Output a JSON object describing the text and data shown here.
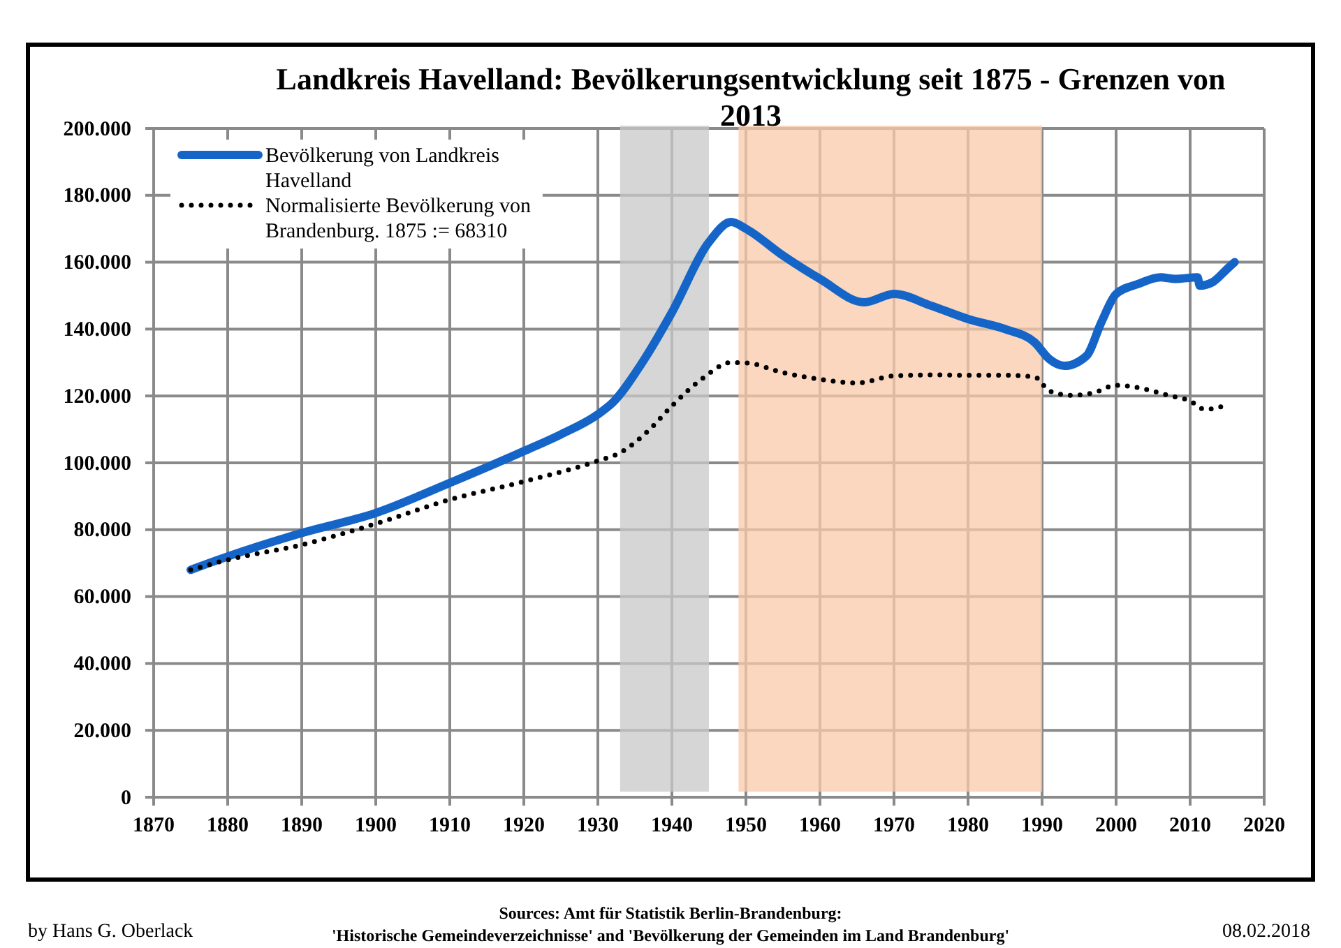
{
  "chart_data": {
    "type": "line",
    "title": "Landkreis Havelland: Bevölkerungsentwicklung seit 1875 - Grenzen von 2013",
    "xlim": [
      1870,
      2020
    ],
    "xticks": [
      1870,
      1880,
      1890,
      1900,
      1910,
      1920,
      1930,
      1940,
      1950,
      1960,
      1970,
      1980,
      1990,
      2000,
      2010,
      2020
    ],
    "ylim": [
      0,
      200000
    ],
    "yticks": [
      {
        "value": 0,
        "label": "0"
      },
      {
        "value": 20000,
        "label": "20.000"
      },
      {
        "value": 40000,
        "label": "40.000"
      },
      {
        "value": 60000,
        "label": "60.000"
      },
      {
        "value": 80000,
        "label": "80.000"
      },
      {
        "value": 100000,
        "label": "100.000"
      },
      {
        "value": 120000,
        "label": "120.000"
      },
      {
        "value": 140000,
        "label": "140.000"
      },
      {
        "value": 160000,
        "label": "160.000"
      },
      {
        "value": 180000,
        "label": "180.000"
      },
      {
        "value": 200000,
        "label": "200.000"
      }
    ],
    "grid": true,
    "legend": "top left",
    "bands": [
      {
        "axis": "x",
        "from": 1933,
        "to": 1945,
        "color": "#c8c8c8"
      },
      {
        "axis": "x",
        "from": 1949,
        "to": 1990,
        "color": "#f9c9a9"
      }
    ],
    "series": [
      {
        "name": "Bevölkerung von Landkreis Havelland",
        "color": "#1565c8",
        "line_style": "solid",
        "x": [
          1875,
          1880,
          1890,
          1900,
          1910,
          1920,
          1925,
          1930,
          1932,
          1936,
          1940,
          1945,
          1948,
          1950,
          1955,
          1960,
          1966,
          1970,
          1975,
          1980,
          1985,
          1989,
          1991,
          1993,
          1996,
          1998,
          2000,
          2003,
          2006,
          2008,
          2011,
          2011.3,
          2013,
          2015,
          2016
        ],
        "values": [
          68000,
          72000,
          79000,
          85000,
          94000,
          103500,
          108500,
          114500,
          118000,
          130000,
          145000,
          166000,
          172000,
          170000,
          162000,
          155000,
          148000,
          150500,
          147000,
          143000,
          140000,
          136000,
          131000,
          129000,
          132000,
          142000,
          150500,
          153500,
          155500,
          155000,
          155500,
          153000,
          154000,
          158000,
          160000
        ]
      },
      {
        "name": "Normalisierte Bevölkerung von Brandenburg. 1875 := 68310",
        "color": "#000000",
        "line_style": "dotted",
        "x": [
          1875,
          1880,
          1890,
          1900,
          1910,
          1920,
          1930,
          1933,
          1937,
          1940,
          1944,
          1948,
          1950,
          1955,
          1960,
          1965,
          1970,
          1975,
          1980,
          1985,
          1989,
          1991,
          1994,
          1997,
          2000,
          2004,
          2007,
          2010,
          2012,
          2015
        ],
        "values": [
          68000,
          71000,
          75500,
          81800,
          89000,
          94400,
          100600,
          103000,
          110000,
          117000,
          125000,
          130000,
          129900,
          127000,
          125000,
          123900,
          126000,
          126300,
          126200,
          126200,
          125700,
          121500,
          120200,
          121000,
          123200,
          122000,
          120200,
          118500,
          116000,
          117300
        ]
      }
    ],
    "annotations": [
      "by Hans G. Oberlack",
      "Sources: Amt für Statistik Berlin-Brandenburg:",
      "'Historische Gemeindeverzeichnisse' and 'Bevölkerung der Gemeinden im Land Brandenburg'",
      "08.02.2018"
    ]
  }
}
